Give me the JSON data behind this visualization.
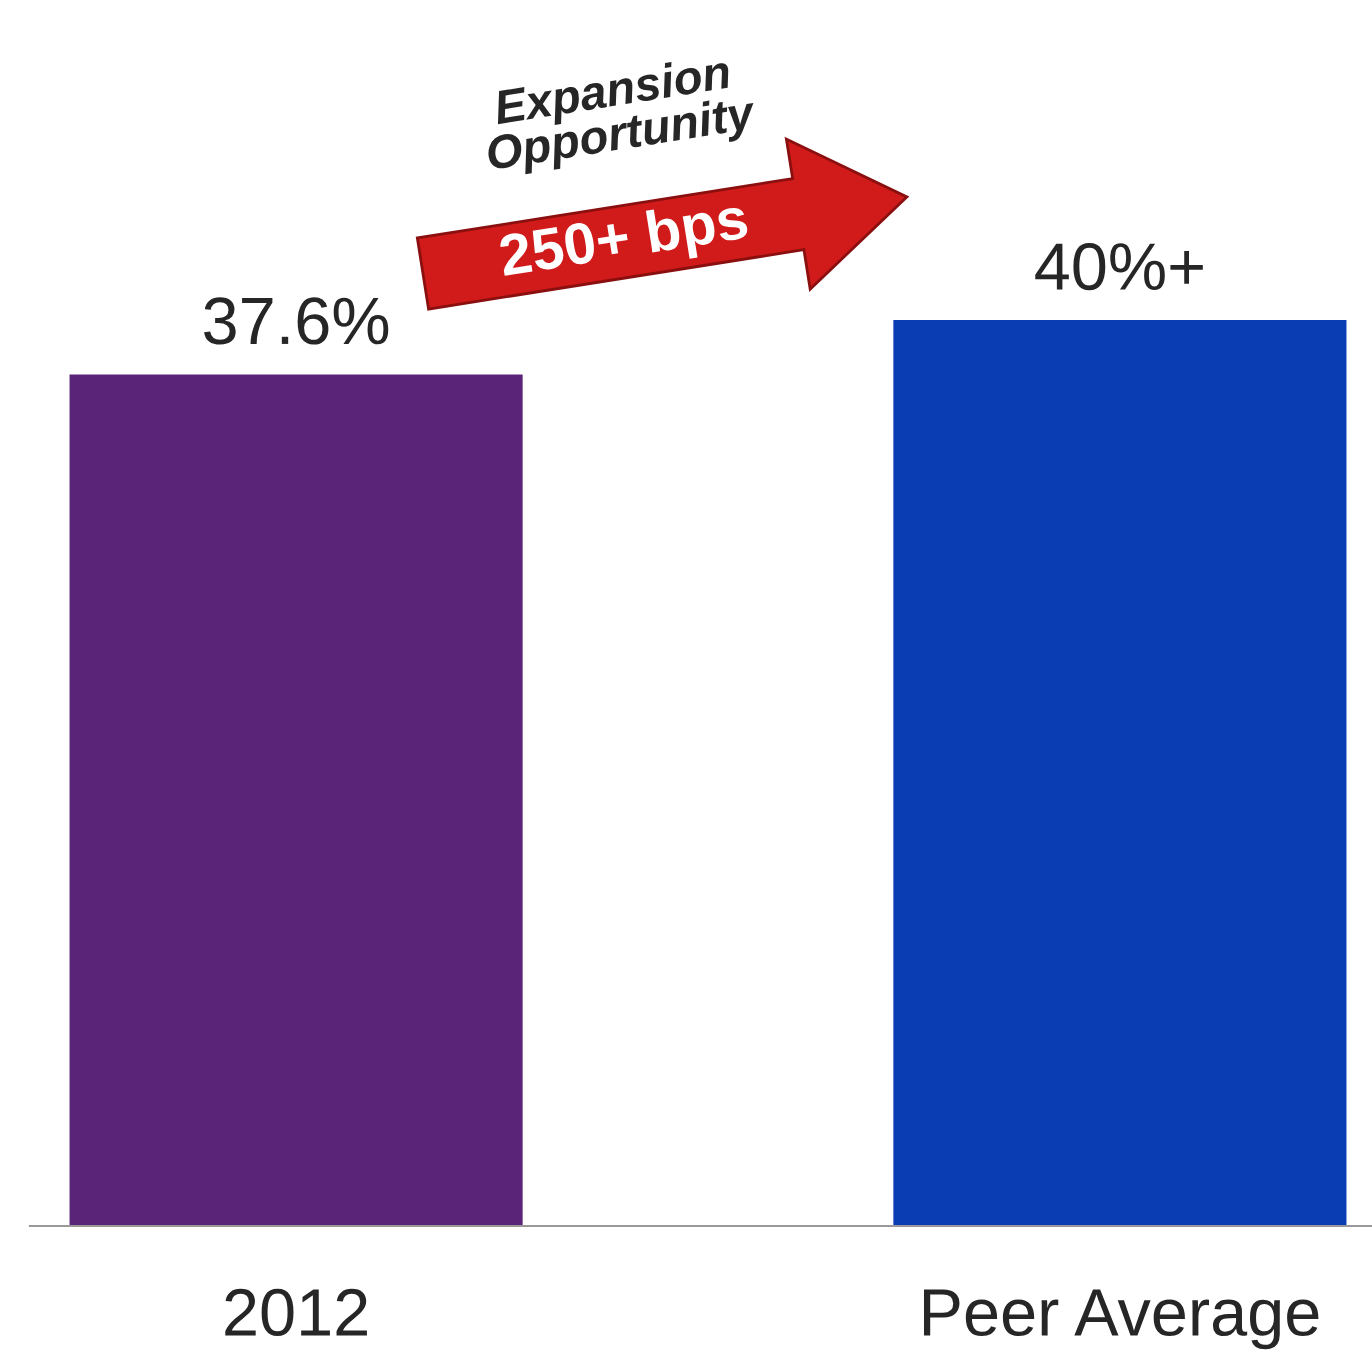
{
  "chart_data": {
    "type": "bar",
    "categories": [
      "2012",
      "Peer Average"
    ],
    "values": [
      37.6,
      40
    ],
    "colors": [
      "#5a2478",
      "#0a3cb4"
    ],
    "value_labels": [
      "37.6%",
      "40%+"
    ],
    "annotations": [
      "Expansion Opportunity",
      "250+ bps"
    ]
  }
}
